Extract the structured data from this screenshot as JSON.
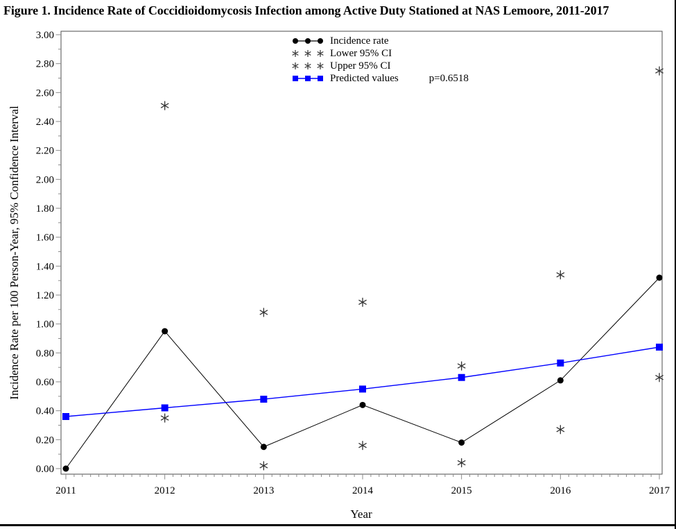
{
  "figure": {
    "title": "Figure 1. Incidence Rate of Coccidioidomycosis Infection among Active Duty Stationed at NAS Lemoore, 2011-2017"
  },
  "chart_data": {
    "type": "line",
    "title": "Figure 1. Incidence Rate of Coccidioidomycosis Infection among Active Duty Stationed at NAS Lemoore, 2011-2017",
    "x": [
      2011,
      2012,
      2013,
      2014,
      2015,
      2016,
      2017
    ],
    "xlabel": "Year",
    "ylabel": "Incidence Rate per 100 Person-Year, 95% Confidence Interval",
    "ylim": [
      0.0,
      3.0
    ],
    "ytick_step": 0.2,
    "ytick_minor_step": 0.1,
    "xtick_minor_per_year": 12,
    "grid": false,
    "legend_position": "inside-top-center",
    "annotation": "p=0.6518",
    "series": [
      {
        "name": "Incidence rate",
        "marker": "circle",
        "line": true,
        "color": "#000000",
        "values": [
          0.0,
          0.95,
          0.15,
          0.44,
          0.18,
          0.61,
          1.32
        ]
      },
      {
        "name": "Lower 95% CI",
        "marker": "asterisk",
        "line": false,
        "color": "#333333",
        "values": [
          null,
          0.35,
          0.02,
          0.16,
          0.04,
          0.27,
          0.63
        ]
      },
      {
        "name": "Upper 95% CI",
        "marker": "asterisk",
        "line": false,
        "color": "#333333",
        "values": [
          null,
          2.51,
          1.08,
          1.15,
          0.71,
          1.34,
          2.75
        ]
      },
      {
        "name": "Predicted values",
        "marker": "square",
        "line": true,
        "color": "#0000ff",
        "values": [
          0.36,
          0.42,
          0.48,
          0.55,
          0.63,
          0.73,
          0.84
        ]
      }
    ]
  }
}
